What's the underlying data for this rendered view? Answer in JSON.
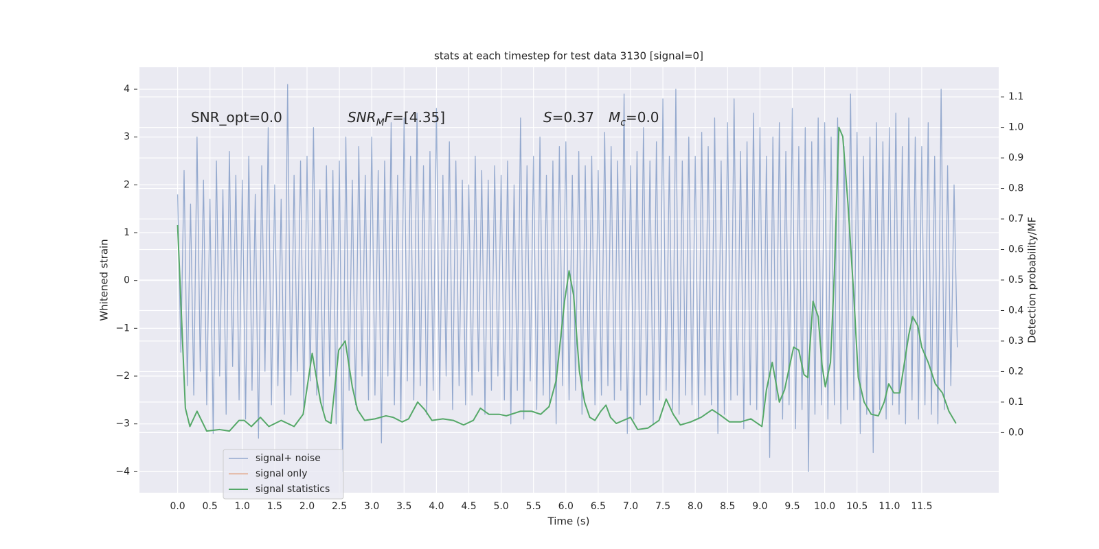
{
  "chart_data": {
    "type": "line",
    "title": "stats at each timestep for test data 3130 [signal=0]",
    "xlabel": "Time (s)",
    "ylabel": "Whitened strain",
    "y2label": "Detection probability/MF",
    "annotations": [
      "SNR_opt=0.0",
      [
        "SNR",
        "M",
        "F",
        "=[4.35]"
      ],
      [
        "S",
        "=0.37"
      ],
      [
        "M",
        "c",
        "=0.0"
      ]
    ],
    "xlim": [
      -0.59,
      12.69
    ],
    "ylim": [
      -4.44,
      4.46
    ],
    "y2lim": [
      -0.197,
      1.197
    ],
    "xticks": [
      {
        "value": 0,
        "label": "0.0"
      },
      0.5,
      {
        "value": 1,
        "label": "1.0"
      },
      1.5,
      {
        "value": 2,
        "label": "2.0"
      },
      2.5,
      {
        "value": 3,
        "label": "3.0"
      },
      3.5,
      {
        "value": 4,
        "label": "4.0"
      },
      4.5,
      {
        "value": 5,
        "label": "5.0"
      },
      5.5,
      {
        "value": 6,
        "label": "6.0"
      },
      6.5,
      {
        "value": 7,
        "label": "7.0"
      },
      7.5,
      {
        "value": 8,
        "label": "8.0"
      },
      8.5,
      {
        "value": 9,
        "label": "9.0"
      },
      9.5,
      {
        "value": 10,
        "label": "10.0"
      },
      10.5,
      {
        "value": 11,
        "label": "11.0"
      },
      11.5
    ],
    "yticks": [
      {
        "value": -4,
        "label": "−4"
      },
      {
        "value": -3,
        "label": "−3"
      },
      {
        "value": -2,
        "label": "−2"
      },
      {
        "value": -1,
        "label": "−1"
      },
      0,
      1,
      2,
      3,
      4
    ],
    "y2ticks": [
      {
        "value": 0,
        "label": "0.0"
      },
      0.1,
      0.2,
      0.3,
      0.4,
      0.5,
      0.6,
      0.7,
      0.8,
      0.9,
      {
        "value": 1,
        "label": "1.0"
      },
      1.1
    ],
    "grid": true,
    "legend": "lower left",
    "series": [
      {
        "name": "signal+ noise",
        "color": "#4c72b0",
        "alpha": 0.55,
        "x": [
          0,
          0.05,
          0.1,
          0.15,
          0.2,
          0.25,
          0.3,
          0.35,
          0.4,
          0.45,
          0.5,
          0.55,
          0.6,
          0.65,
          0.7,
          0.75,
          0.8,
          0.85,
          0.9,
          0.95,
          1,
          1.05,
          1.1,
          1.15,
          1.2,
          1.25,
          1.3,
          1.35,
          1.4,
          1.45,
          1.5,
          1.55,
          1.6,
          1.65,
          1.7,
          1.75,
          1.8,
          1.85,
          1.9,
          1.95,
          2,
          2.05,
          2.1,
          2.15,
          2.2,
          2.25,
          2.3,
          2.35,
          2.4,
          2.45,
          2.5,
          2.55,
          2.6,
          2.65,
          2.7,
          2.75,
          2.8,
          2.85,
          2.9,
          2.95,
          3,
          3.05,
          3.1,
          3.15,
          3.2,
          3.25,
          3.3,
          3.35,
          3.4,
          3.45,
          3.5,
          3.55,
          3.6,
          3.65,
          3.7,
          3.75,
          3.8,
          3.85,
          3.9,
          3.95,
          4,
          4.05,
          4.1,
          4.15,
          4.2,
          4.25,
          4.3,
          4.35,
          4.4,
          4.45,
          4.5,
          4.55,
          4.6,
          4.65,
          4.7,
          4.75,
          4.8,
          4.85,
          4.9,
          4.95,
          5,
          5.05,
          5.1,
          5.15,
          5.2,
          5.25,
          5.3,
          5.35,
          5.4,
          5.45,
          5.5,
          5.55,
          5.6,
          5.65,
          5.7,
          5.75,
          5.8,
          5.85,
          5.9,
          5.95,
          6,
          6.05,
          6.1,
          6.15,
          6.2,
          6.25,
          6.3,
          6.35,
          6.4,
          6.45,
          6.5,
          6.55,
          6.6,
          6.65,
          6.7,
          6.75,
          6.8,
          6.85,
          6.9,
          6.95,
          7,
          7.05,
          7.1,
          7.15,
          7.2,
          7.25,
          7.3,
          7.35,
          7.4,
          7.45,
          7.5,
          7.55,
          7.6,
          7.65,
          7.7,
          7.75,
          7.8,
          7.85,
          7.9,
          7.95,
          8,
          8.05,
          8.1,
          8.15,
          8.2,
          8.25,
          8.3,
          8.35,
          8.4,
          8.45,
          8.5,
          8.55,
          8.6,
          8.65,
          8.7,
          8.75,
          8.8,
          8.85,
          8.9,
          8.95,
          9,
          9.05,
          9.1,
          9.15,
          9.2,
          9.25,
          9.3,
          9.35,
          9.4,
          9.45,
          9.5,
          9.55,
          9.6,
          9.65,
          9.7,
          9.75,
          9.8,
          9.85,
          9.9,
          9.95,
          10,
          10.05,
          10.1,
          10.15,
          10.2,
          10.25,
          10.3,
          10.35,
          10.4,
          10.45,
          10.5,
          10.55,
          10.6,
          10.65,
          10.7,
          10.75,
          10.8,
          10.85,
          10.9,
          10.95,
          11,
          11.05,
          11.1,
          11.15,
          11.2,
          11.25,
          11.3,
          11.35,
          11.4,
          11.45,
          11.5,
          11.55,
          11.6,
          11.65,
          11.7,
          11.75,
          11.8,
          11.85,
          11.9,
          11.95,
          12,
          12.05
        ],
        "values": [
          1.8,
          -1.5,
          2.3,
          -2.2,
          1.6,
          -2.4,
          3.0,
          -1.9,
          2.1,
          -2.6,
          1.7,
          -3.2,
          2.5,
          -2.0,
          1.9,
          -2.8,
          2.7,
          -1.8,
          2.2,
          -2.5,
          2.1,
          -2.9,
          2.6,
          -2.3,
          1.8,
          -3.3,
          2.4,
          -1.9,
          3.2,
          -2.6,
          2.0,
          -2.2,
          1.7,
          -2.8,
          4.1,
          -2.4,
          2.2,
          -1.9,
          2.5,
          -2.7,
          2.6,
          -2.1,
          3.2,
          -2.4,
          1.9,
          -2.7,
          2.4,
          -2.0,
          2.3,
          -3.0,
          2.5,
          -4.0,
          3.0,
          -2.3,
          2.1,
          -2.6,
          2.8,
          -2.0,
          2.2,
          -2.5,
          3.0,
          -2.4,
          2.3,
          -3.4,
          2.5,
          -2.0,
          3.3,
          -2.6,
          2.2,
          -2.9,
          3.4,
          -2.1,
          2.6,
          -2.5,
          3.5,
          -2.2,
          2.4,
          -2.8,
          2.7,
          -2.3,
          3.6,
          -2.5,
          2.2,
          -2.0,
          2.9,
          -2.7,
          2.5,
          -2.2,
          2.1,
          -2.6,
          2.0,
          -2.4,
          2.6,
          -1.9,
          2.3,
          -2.8,
          2.1,
          -2.3,
          2.4,
          -2.0,
          2.2,
          -2.5,
          2.5,
          -3.0,
          2.0,
          -2.3,
          3.4,
          -2.9,
          2.4,
          -2.1,
          2.6,
          -2.7,
          3.0,
          -2.4,
          2.2,
          -2.6,
          2.5,
          -3.0,
          2.8,
          -2.2,
          2.9,
          -2.5,
          2.2,
          -2.3,
          2.7,
          -2.8,
          2.4,
          -2.1,
          2.6,
          -2.6,
          2.3,
          -2.4,
          3.1,
          -2.2,
          2.8,
          -2.5,
          2.5,
          -2.3,
          3.9,
          -3.2,
          2.4,
          -2.9,
          2.7,
          -2.6,
          3.2,
          -2.4,
          2.5,
          -3.0,
          2.9,
          -2.5,
          3.8,
          -2.3,
          2.6,
          -2.7,
          4.0,
          -2.8,
          2.5,
          -2.4,
          3.0,
          -2.6,
          2.6,
          -2.9,
          3.1,
          -2.4,
          2.8,
          -2.6,
          3.4,
          -3.2,
          2.5,
          -2.8,
          3.3,
          -2.5,
          3.8,
          -2.4,
          2.7,
          -3.1,
          2.9,
          -2.6,
          3.5,
          -2.7,
          3.2,
          -2.8,
          2.6,
          -3.7,
          3.0,
          -2.5,
          3.3,
          -2.9,
          2.7,
          -2.6,
          3.6,
          -3.1,
          2.8,
          -2.7,
          3.2,
          -4.0,
          2.9,
          -2.8,
          3.4,
          -2.6,
          3.3,
          -2.9,
          3.0,
          -2.6,
          3.4,
          -3.0,
          2.8,
          -2.7,
          3.9,
          -2.5,
          3.1,
          -3.2,
          2.6,
          -2.8,
          3.0,
          -3.6,
          3.3,
          -2.7,
          2.9,
          -2.9,
          3.2,
          -2.6,
          3.5,
          -2.8,
          2.8,
          -3.0,
          3.4,
          -2.5,
          3.0,
          -2.9,
          2.8,
          -2.6,
          3.3,
          -2.8,
          2.6,
          -3.0,
          4.0,
          -2.7,
          2.4,
          -2.2,
          2.0,
          -1.4
        ]
      },
      {
        "name": "signal only",
        "color": "#dd8452"
      },
      {
        "name": "signal statistics",
        "color": "#55a868",
        "axis": "y2",
        "x": [
          0,
          0.12,
          0.19,
          0.3,
          0.45,
          0.65,
          0.8,
          0.95,
          1.03,
          1.14,
          1.28,
          1.41,
          1.6,
          1.8,
          1.94,
          2.08,
          2.21,
          2.29,
          2.37,
          2.49,
          2.59,
          2.7,
          2.78,
          2.89,
          3.05,
          3.22,
          3.33,
          3.47,
          3.57,
          3.71,
          3.82,
          3.93,
          4.1,
          4.26,
          4.42,
          4.57,
          4.68,
          4.81,
          4.97,
          5.08,
          5.3,
          5.47,
          5.61,
          5.74,
          5.85,
          5.98,
          6.05,
          6.12,
          6.21,
          6.29,
          6.37,
          6.45,
          6.54,
          6.62,
          6.69,
          6.78,
          6.89,
          7.0,
          7.11,
          7.27,
          7.44,
          7.55,
          7.66,
          7.77,
          7.93,
          8.09,
          8.26,
          8.37,
          8.53,
          8.7,
          8.86,
          9.03,
          9.1,
          9.19,
          9.3,
          9.38,
          9.52,
          9.6,
          9.68,
          9.74,
          9.82,
          9.9,
          9.96,
          10.01,
          10.09,
          10.15,
          10.22,
          10.28,
          10.36,
          10.45,
          10.52,
          10.61,
          10.72,
          10.83,
          10.92,
          10.99,
          11.07,
          11.16,
          11.3,
          11.36,
          11.44,
          11.5,
          11.6,
          11.71,
          11.82,
          11.92,
          12.03
        ],
        "values": [
          0.68,
          0.08,
          0.02,
          0.07,
          0.005,
          0.01,
          0.005,
          0.04,
          0.04,
          0.02,
          0.05,
          0.02,
          0.04,
          0.02,
          0.06,
          0.26,
          0.1,
          0.04,
          0.03,
          0.27,
          0.3,
          0.15,
          0.075,
          0.04,
          0.045,
          0.055,
          0.05,
          0.035,
          0.045,
          0.1,
          0.075,
          0.04,
          0.045,
          0.04,
          0.025,
          0.04,
          0.08,
          0.06,
          0.06,
          0.055,
          0.07,
          0.07,
          0.06,
          0.085,
          0.17,
          0.43,
          0.53,
          0.45,
          0.2,
          0.1,
          0.05,
          0.04,
          0.07,
          0.09,
          0.05,
          0.03,
          0.04,
          0.05,
          0.01,
          0.015,
          0.04,
          0.11,
          0.06,
          0.025,
          0.035,
          0.05,
          0.075,
          0.06,
          0.035,
          0.035,
          0.045,
          0.02,
          0.14,
          0.23,
          0.1,
          0.14,
          0.28,
          0.27,
          0.19,
          0.18,
          0.43,
          0.38,
          0.22,
          0.15,
          0.23,
          0.52,
          1.0,
          0.97,
          0.75,
          0.45,
          0.18,
          0.1,
          0.06,
          0.055,
          0.1,
          0.16,
          0.13,
          0.13,
          0.32,
          0.38,
          0.35,
          0.28,
          0.23,
          0.16,
          0.13,
          0.07,
          0.03
        ]
      }
    ]
  }
}
